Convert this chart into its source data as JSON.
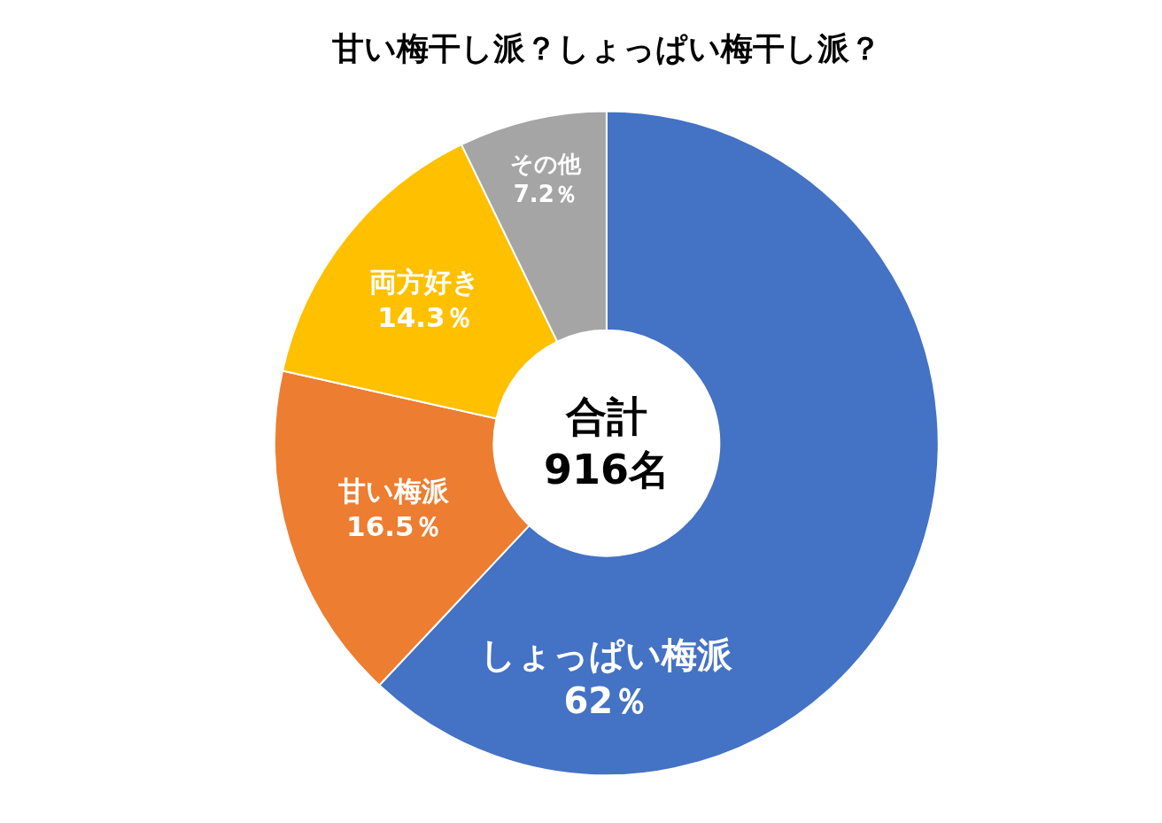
{
  "chart_data": {
    "type": "donut",
    "title": "甘い梅干し派？しょっぱい梅干し派？",
    "categories": [
      "しょっぱい梅派",
      "甘い梅派",
      "両方好き",
      "その他"
    ],
    "values": [
      62,
      16.5,
      14.3,
      7.2
    ],
    "value_labels": [
      "62％",
      "16.5％",
      "14.3％",
      "7.2％"
    ],
    "colors": [
      "#4472c4",
      "#ed7d31",
      "#ffc000",
      "#a5a5a5"
    ],
    "annotations": [
      "合計\n916名"
    ],
    "legend": false
  }
}
